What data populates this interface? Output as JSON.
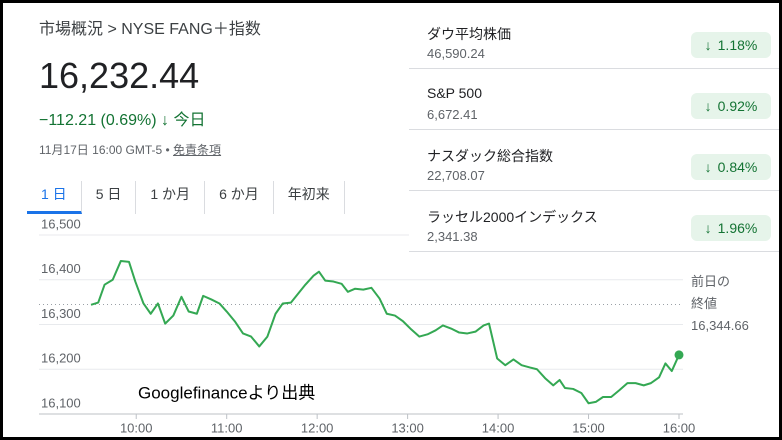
{
  "breadcrumb": "市場概況 > NYSE FANG＋指数",
  "price": "16,232.44",
  "change": "−112.21 (0.69%)",
  "change_period": "今日",
  "timestamp": "11月17日 16:00 GMT-5",
  "disclaimer": "免責条項",
  "tabs": [
    "1 日",
    "5 日",
    "1 か月",
    "6 か月",
    "年初来"
  ],
  "indices": [
    {
      "name": "ダウ平均株価",
      "value": "46,590.24",
      "change": "1.18%"
    },
    {
      "name": "S&P 500",
      "value": "6,672.41",
      "change": "0.92%"
    },
    {
      "name": "ナスダック総合指数",
      "value": "22,708.07",
      "change": "0.84%"
    },
    {
      "name": "ラッセル2000インデックス",
      "value": "2,341.38",
      "change": "1.96%"
    }
  ],
  "chart_data": {
    "type": "line",
    "color": "#34a853",
    "grid": true,
    "annotation": "Googlefinanceより出典",
    "x": [
      9.5,
      9.58,
      9.65,
      9.74,
      9.83,
      9.92,
      9.99,
      10.08,
      10.16,
      10.24,
      10.32,
      10.41,
      10.5,
      10.58,
      10.67,
      10.74,
      10.83,
      10.92,
      11.0,
      11.09,
      11.18,
      11.27,
      11.36,
      11.45,
      11.54,
      11.62,
      11.71,
      11.79,
      11.87,
      11.96,
      12.02,
      12.09,
      12.18,
      12.27,
      12.34,
      12.42,
      12.51,
      12.6,
      12.69,
      12.77,
      12.86,
      12.95,
      13.04,
      13.13,
      13.22,
      13.31,
      13.39,
      13.48,
      13.57,
      13.66,
      13.75,
      13.84,
      13.9,
      13.99,
      14.08,
      14.17,
      14.26,
      14.35,
      14.43,
      14.52,
      14.61,
      14.68,
      14.74,
      14.83,
      14.92,
      15.0,
      15.08,
      15.16,
      15.25,
      15.34,
      15.43,
      15.52,
      15.61,
      15.69,
      15.78,
      15.85,
      15.92,
      16.0
    ],
    "values": [
      16344,
      16349,
      16389,
      16400,
      16442,
      16440,
      16396,
      16347,
      16324,
      16347,
      16302,
      16320,
      16362,
      16329,
      16324,
      16364,
      16356,
      16347,
      16329,
      16307,
      16280,
      16273,
      16251,
      16273,
      16324,
      16347,
      16349,
      16369,
      16389,
      16409,
      16418,
      16398,
      16396,
      16391,
      16373,
      16380,
      16378,
      16382,
      16358,
      16324,
      16320,
      16307,
      16289,
      16273,
      16278,
      16287,
      16298,
      16291,
      16282,
      16280,
      16284,
      16298,
      16302,
      16224,
      16209,
      16222,
      16209,
      16204,
      16200,
      16180,
      16164,
      16176,
      16158,
      16156,
      16147,
      16124,
      16127,
      16138,
      16138,
      16153,
      16169,
      16169,
      16164,
      16169,
      16182,
      16213,
      16196,
      16232
    ],
    "xlim": [
      9.5,
      16.0
    ],
    "xticks": [
      {
        "value": 10,
        "label": "10:00"
      },
      {
        "value": 11,
        "label": "11:00"
      },
      {
        "value": 12,
        "label": "12:00"
      },
      {
        "value": 13,
        "label": "13:00"
      },
      {
        "value": 14,
        "label": "14:00"
      },
      {
        "value": 15,
        "label": "15:00"
      },
      {
        "value": 16,
        "label": "16:00"
      }
    ],
    "ylim": [
      16100,
      16500
    ],
    "yticks": [
      {
        "value": 16100,
        "label": "16,100"
      },
      {
        "value": 16200,
        "label": "16,200"
      },
      {
        "value": 16300,
        "label": "16,300"
      },
      {
        "value": 16400,
        "label": "16,400"
      },
      {
        "value": 16500,
        "label": "16,500"
      }
    ],
    "reference_line": {
      "label_lines": [
        "前日の",
        "終値"
      ],
      "value": 16344.66,
      "label": "16,344.66"
    }
  }
}
